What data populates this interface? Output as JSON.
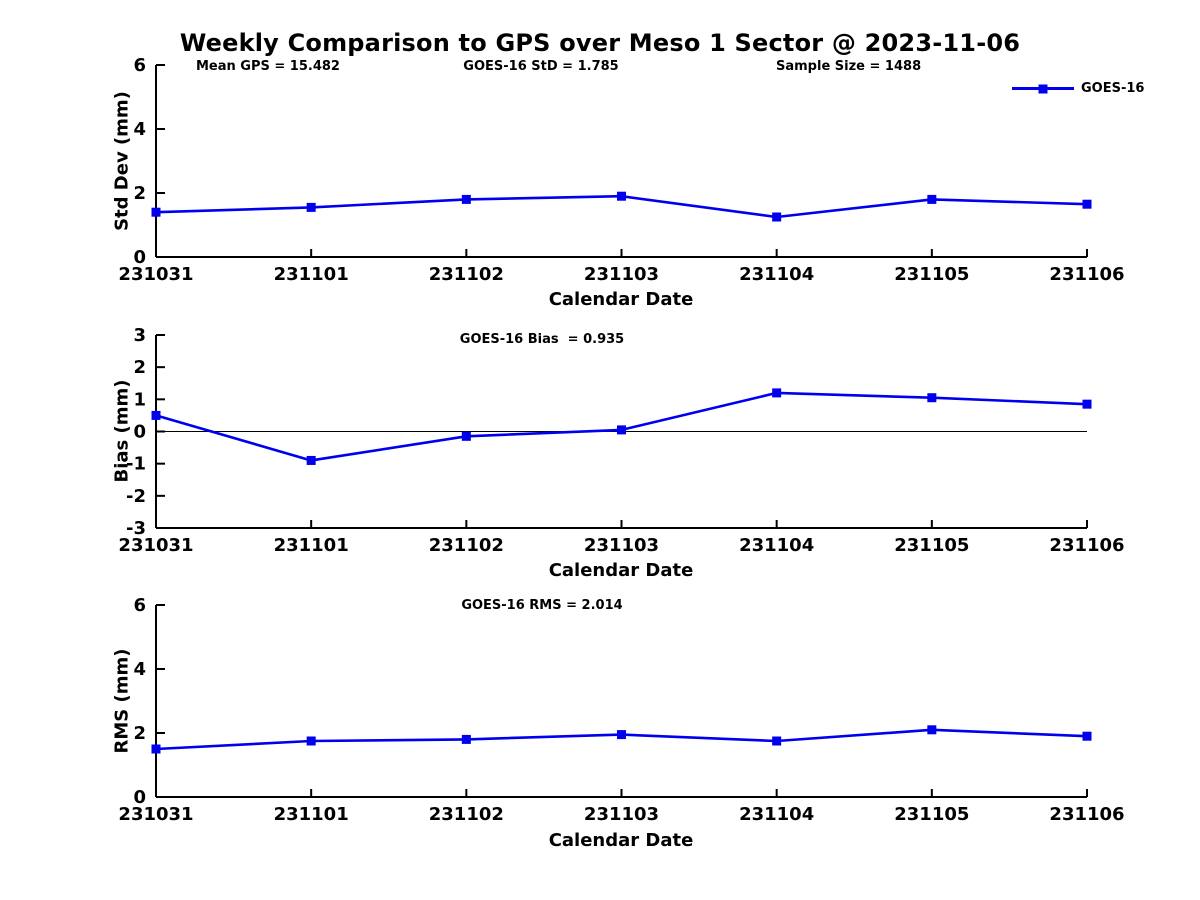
{
  "title": "Weekly Comparison to GPS over Meso 1 Sector @ 2023-11-06",
  "header_annotations": [
    {
      "id": "mean-gps",
      "text": "Mean GPS = 15.482"
    },
    {
      "id": "goes16-std",
      "text": "GOES-16 StD = 1.785"
    },
    {
      "id": "sample-size",
      "text": "Sample Size = 1488"
    }
  ],
  "legend": {
    "label": "GOES-16",
    "marker": "square-icon",
    "position": "upper-right"
  },
  "colors": {
    "series": "#0000ee",
    "axis": "#000000",
    "zero_line": "#000000",
    "background": "#ffffff",
    "text": "#000000"
  },
  "chart_data": [
    {
      "id": "stddev",
      "type": "line",
      "categories": [
        "231031",
        "231101",
        "231102",
        "231103",
        "231104",
        "231105",
        "231106"
      ],
      "series": [
        {
          "name": "GOES-16",
          "values": [
            1.4,
            1.55,
            1.8,
            1.9,
            1.25,
            1.8,
            1.65
          ]
        }
      ],
      "annotation": "",
      "xlabel": "Calendar Date",
      "ylabel": "Std Dev (mm)",
      "ylim": [
        0,
        6
      ],
      "yticks": [
        0,
        2,
        4,
        6
      ],
      "zero_line": false,
      "grid": false
    },
    {
      "id": "bias",
      "type": "line",
      "categories": [
        "231031",
        "231101",
        "231102",
        "231103",
        "231104",
        "231105",
        "231106"
      ],
      "series": [
        {
          "name": "GOES-16",
          "values": [
            0.5,
            -0.9,
            -0.15,
            0.05,
            1.2,
            1.05,
            0.85
          ]
        }
      ],
      "annotation": "GOES-16 Bias  = 0.935",
      "xlabel": "Calendar Date",
      "ylabel": "Bias (mm)",
      "ylim": [
        -3,
        3
      ],
      "yticks": [
        -3,
        -2,
        -1,
        0,
        1,
        2,
        3
      ],
      "zero_line": true,
      "grid": false
    },
    {
      "id": "rms",
      "type": "line",
      "categories": [
        "231031",
        "231101",
        "231102",
        "231103",
        "231104",
        "231105",
        "231106"
      ],
      "series": [
        {
          "name": "GOES-16",
          "values": [
            1.5,
            1.75,
            1.8,
            1.95,
            1.75,
            2.1,
            1.9
          ]
        }
      ],
      "annotation": "GOES-16 RMS = 2.014",
      "xlabel": "Calendar Date",
      "ylabel": "RMS (mm)",
      "ylim": [
        0,
        6
      ],
      "yticks": [
        0,
        2,
        4,
        6
      ],
      "zero_line": false,
      "grid": false
    }
  ]
}
